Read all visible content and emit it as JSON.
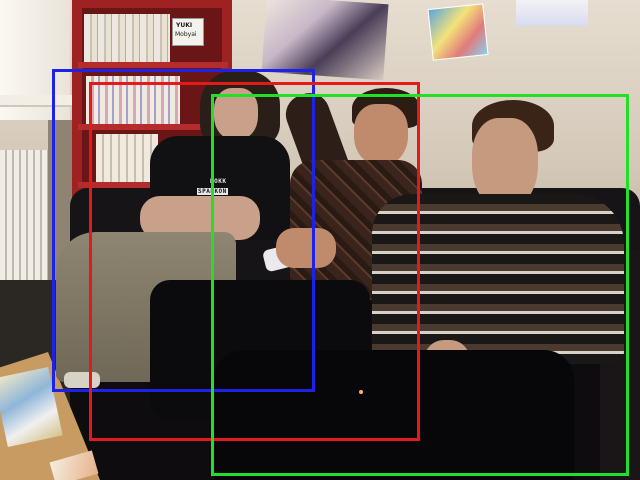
{
  "image": {
    "kind": "photograph",
    "scene": "living-room-sofa"
  },
  "bounding_boxes": [
    {
      "id": "box-blue",
      "color": "#1e22e6"
    },
    {
      "id": "box-red",
      "color": "#e21a1a"
    },
    {
      "id": "box-green",
      "color": "#22e028"
    }
  ],
  "visible_text": {
    "shelf_sign_line1": "YUKI",
    "shelf_sign_line2": "Mobyai",
    "tshirt_line1": "BOKK",
    "tshirt_line2": "SPAßKON"
  },
  "colors": {
    "wall": "#d9cfc0",
    "sofa": "#141214",
    "shelf": "#a82424",
    "floor": "#2a2622"
  }
}
